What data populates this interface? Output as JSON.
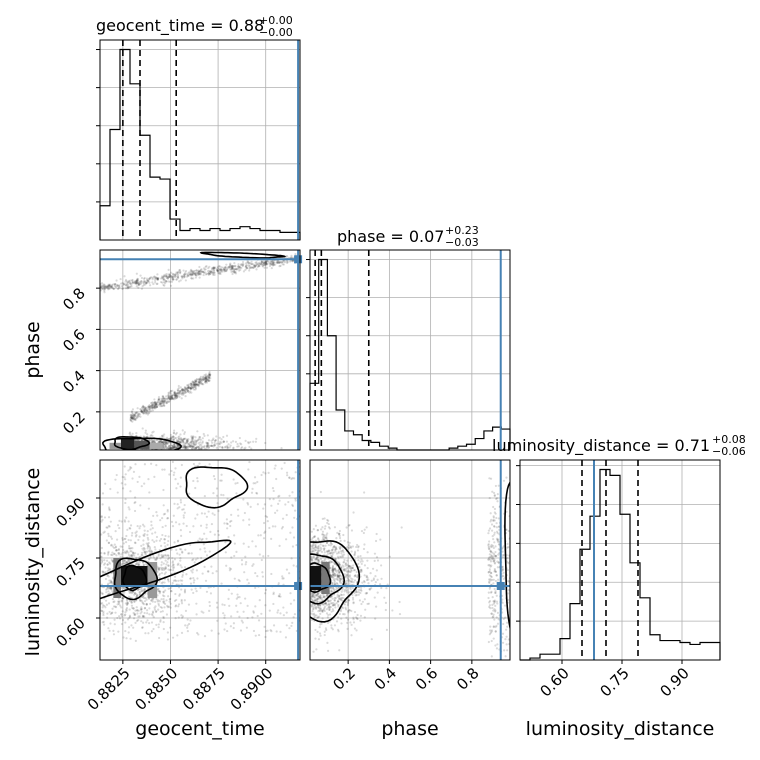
{
  "chart_data": {
    "type": "corner",
    "truth_color": "#4682b4",
    "parameters": [
      "geocent_time",
      "phase",
      "luminosity_distance"
    ],
    "titles": [
      {
        "param": "geocent_time",
        "main": "geocent_time = 0.88",
        "plus": "+0.00",
        "minus": "−0.00"
      },
      {
        "param": "phase",
        "main": "phase = 0.07",
        "plus": "+0.23",
        "minus": "−0.03"
      },
      {
        "param": "luminosity_distance",
        "main": "luminosity_distance = 0.71",
        "plus": "+0.08",
        "minus": "−0.06"
      }
    ],
    "axis_labels": {
      "geocent_time": "geocent_time",
      "phase": "phase",
      "luminosity_distance": "luminosity_distance"
    },
    "ranges": {
      "geocent_time": [
        0.8813,
        0.8918
      ],
      "phase": [
        0.015,
        0.985
      ],
      "luminosity_distance": [
        0.495,
        0.995
      ]
    },
    "ticks": {
      "geocent_time": [
        {
          "v": 0.8825,
          "label": "0.8825"
        },
        {
          "v": 0.885,
          "label": "0.8850"
        },
        {
          "v": 0.8875,
          "label": "0.8875"
        },
        {
          "v": 0.89,
          "label": "0.8900"
        }
      ],
      "phase": [
        {
          "v": 0.2,
          "label": "0.2"
        },
        {
          "v": 0.4,
          "label": "0.4"
        },
        {
          "v": 0.6,
          "label": "0.6"
        },
        {
          "v": 0.8,
          "label": "0.8"
        }
      ],
      "luminosity_distance": [
        {
          "v": 0.6,
          "label": "0.60"
        },
        {
          "v": 0.75,
          "label": "0.75"
        },
        {
          "v": 0.9,
          "label": "0.90"
        }
      ]
    },
    "truths": {
      "geocent_time": 0.8917,
      "phase": 0.94,
      "luminosity_distance": 0.68
    },
    "quantiles": {
      "geocent_time": [
        0.8825,
        0.8834,
        0.8853
      ],
      "phase": [
        0.04,
        0.07,
        0.3
      ],
      "luminosity_distance": [
        0.65,
        0.71,
        0.79
      ]
    },
    "histograms": {
      "geocent_time": {
        "min": 0.8813,
        "max": 0.8918,
        "counts": [
          0.18,
          0.58,
          1.0,
          0.82,
          0.55,
          0.33,
          0.32,
          0.11,
          0.05,
          0.06,
          0.05,
          0.06,
          0.05,
          0.06,
          0.07,
          0.06,
          0.05,
          0.05,
          0.04,
          0.04
        ]
      },
      "phase": {
        "min": 0.015,
        "max": 0.985,
        "counts": [
          0.35,
          1.0,
          0.6,
          0.21,
          0.1,
          0.08,
          0.05,
          0.04,
          0.02,
          0.01,
          0.0,
          0.0,
          0.0,
          0.0,
          0.0,
          0.0,
          0.01,
          0.02,
          0.03,
          0.06,
          0.1,
          0.12,
          0.11
        ]
      },
      "luminosity_distance": {
        "min": 0.495,
        "max": 0.995,
        "counts": [
          0.0,
          0.01,
          0.03,
          0.03,
          0.11,
          0.29,
          0.57,
          0.74,
          0.98,
          0.95,
          0.75,
          0.5,
          0.32,
          0.13,
          0.1,
          0.1,
          0.09,
          0.08,
          0.09,
          0.09
        ]
      }
    },
    "grid": true
  }
}
